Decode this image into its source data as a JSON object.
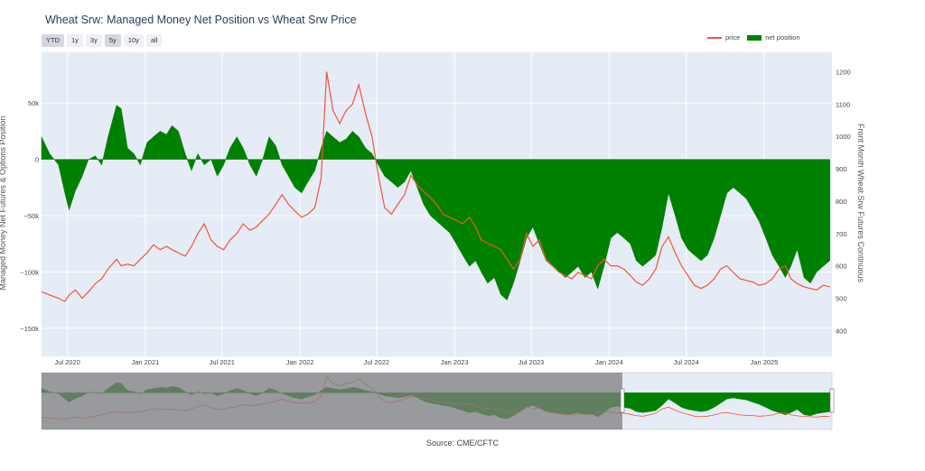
{
  "title": "Wheat Srw: Managed Money Net Position vs Wheat Srw Price",
  "range_buttons": [
    {
      "label": "YTD",
      "active": true
    },
    {
      "label": "1y",
      "active": false
    },
    {
      "label": "3y",
      "active": false
    },
    {
      "label": "5y",
      "active": true
    },
    {
      "label": "10y",
      "active": false
    },
    {
      "label": "all",
      "active": false
    }
  ],
  "legend": {
    "price": "price",
    "net": "net position"
  },
  "source": "Source: CME/CFTC",
  "colors": {
    "price": "#ef553b",
    "net": "#008000",
    "plot_bg": "#e5ecf6",
    "grid": "#ffffff",
    "slider_mask": "#7f7f7f"
  },
  "chart_data": {
    "type": "area",
    "xlabel": "",
    "y_left_label": "Managed Money Net Futures & Options Position",
    "y_right_label": "Front Month Wheat Srw Futures Continuous",
    "x_range": [
      "2020-05-01",
      "2025-06-10"
    ],
    "y_left_range": [
      -175000,
      95000
    ],
    "y_right_range": [
      320,
      1260
    ],
    "x_ticks": [
      {
        "date": "2020-07-01",
        "label": "Jul 2020"
      },
      {
        "date": "2021-01-01",
        "label": "Jan 2021"
      },
      {
        "date": "2021-07-01",
        "label": "Jul 2021"
      },
      {
        "date": "2022-01-01",
        "label": "Jan 2022"
      },
      {
        "date": "2022-07-01",
        "label": "Jul 2022"
      },
      {
        "date": "2023-01-01",
        "label": "Jan 2023"
      },
      {
        "date": "2023-07-01",
        "label": "Jul 2023"
      },
      {
        "date": "2024-01-01",
        "label": "Jan 2024"
      },
      {
        "date": "2024-07-01",
        "label": "Jul 2024"
      },
      {
        "date": "2025-01-01",
        "label": "Jan 2025"
      }
    ],
    "y_left_ticks": [
      {
        "value": 50000,
        "label": "50k"
      },
      {
        "value": 0,
        "label": "0"
      },
      {
        "value": -50000,
        "label": "−50k"
      },
      {
        "value": -100000,
        "label": "−100k"
      },
      {
        "value": -150000,
        "label": "−150k"
      }
    ],
    "y_right_ticks": [
      {
        "value": 1200,
        "label": "1200"
      },
      {
        "value": 1100,
        "label": "1100"
      },
      {
        "value": 1000,
        "label": "1000"
      },
      {
        "value": 900,
        "label": "900"
      },
      {
        "value": 800,
        "label": "800"
      },
      {
        "value": 700,
        "label": "700"
      },
      {
        "value": 600,
        "label": "600"
      },
      {
        "value": 500,
        "label": "500"
      },
      {
        "value": 400,
        "label": "400"
      }
    ],
    "series": [
      {
        "name": "net position",
        "kind": "area",
        "points": [
          [
            "2020-05-01",
            20000
          ],
          [
            "2020-05-20",
            5000
          ],
          [
            "2020-06-10",
            -5000
          ],
          [
            "2020-06-25",
            -30000
          ],
          [
            "2020-07-05",
            -45000
          ],
          [
            "2020-07-20",
            -28000
          ],
          [
            "2020-08-05",
            -15000
          ],
          [
            "2020-08-20",
            0
          ],
          [
            "2020-09-05",
            3000
          ],
          [
            "2020-09-20",
            -5000
          ],
          [
            "2020-10-05",
            20000
          ],
          [
            "2020-10-25",
            48000
          ],
          [
            "2020-11-05",
            45000
          ],
          [
            "2020-11-20",
            10000
          ],
          [
            "2020-12-05",
            5000
          ],
          [
            "2020-12-20",
            -5000
          ],
          [
            "2021-01-05",
            15000
          ],
          [
            "2021-01-20",
            20000
          ],
          [
            "2021-02-05",
            25000
          ],
          [
            "2021-02-20",
            22000
          ],
          [
            "2021-03-05",
            30000
          ],
          [
            "2021-03-20",
            25000
          ],
          [
            "2021-04-05",
            5000
          ],
          [
            "2021-04-20",
            -10000
          ],
          [
            "2021-05-05",
            5000
          ],
          [
            "2021-05-20",
            -5000
          ],
          [
            "2021-06-05",
            0
          ],
          [
            "2021-06-20",
            -15000
          ],
          [
            "2021-07-05",
            -5000
          ],
          [
            "2021-07-20",
            10000
          ],
          [
            "2021-08-05",
            20000
          ],
          [
            "2021-08-20",
            10000
          ],
          [
            "2021-09-05",
            -5000
          ],
          [
            "2021-09-20",
            -15000
          ],
          [
            "2021-10-05",
            0
          ],
          [
            "2021-10-20",
            20000
          ],
          [
            "2021-11-05",
            12000
          ],
          [
            "2021-11-20",
            -5000
          ],
          [
            "2021-12-05",
            -15000
          ],
          [
            "2021-12-20",
            -25000
          ],
          [
            "2022-01-05",
            -30000
          ],
          [
            "2022-01-20",
            -20000
          ],
          [
            "2022-02-05",
            -10000
          ],
          [
            "2022-02-20",
            10000
          ],
          [
            "2022-03-05",
            25000
          ],
          [
            "2022-03-20",
            20000
          ],
          [
            "2022-04-05",
            15000
          ],
          [
            "2022-04-20",
            18000
          ],
          [
            "2022-05-05",
            25000
          ],
          [
            "2022-05-20",
            20000
          ],
          [
            "2022-06-05",
            10000
          ],
          [
            "2022-06-20",
            5000
          ],
          [
            "2022-07-05",
            -5000
          ],
          [
            "2022-07-20",
            -15000
          ],
          [
            "2022-08-05",
            -20000
          ],
          [
            "2022-08-20",
            -25000
          ],
          [
            "2022-09-05",
            -20000
          ],
          [
            "2022-09-20",
            -10000
          ],
          [
            "2022-10-05",
            -25000
          ],
          [
            "2022-10-20",
            -40000
          ],
          [
            "2022-11-05",
            -50000
          ],
          [
            "2022-11-20",
            -55000
          ],
          [
            "2022-12-05",
            -60000
          ],
          [
            "2022-12-20",
            -65000
          ],
          [
            "2023-01-05",
            -75000
          ],
          [
            "2023-01-20",
            -85000
          ],
          [
            "2023-02-05",
            -95000
          ],
          [
            "2023-02-20",
            -90000
          ],
          [
            "2023-03-05",
            -100000
          ],
          [
            "2023-03-20",
            -110000
          ],
          [
            "2023-04-05",
            -105000
          ],
          [
            "2023-04-20",
            -120000
          ],
          [
            "2023-05-05",
            -125000
          ],
          [
            "2023-05-20",
            -110000
          ],
          [
            "2023-06-05",
            -90000
          ],
          [
            "2023-06-20",
            -70000
          ],
          [
            "2023-07-05",
            -60000
          ],
          [
            "2023-07-20",
            -75000
          ],
          [
            "2023-08-05",
            -90000
          ],
          [
            "2023-08-20",
            -95000
          ],
          [
            "2023-09-05",
            -100000
          ],
          [
            "2023-09-20",
            -105000
          ],
          [
            "2023-10-05",
            -100000
          ],
          [
            "2023-10-20",
            -95000
          ],
          [
            "2023-11-05",
            -105000
          ],
          [
            "2023-11-20",
            -100000
          ],
          [
            "2023-12-05",
            -115000
          ],
          [
            "2023-12-20",
            -95000
          ],
          [
            "2024-01-05",
            -70000
          ],
          [
            "2024-01-20",
            -65000
          ],
          [
            "2024-02-05",
            -70000
          ],
          [
            "2024-02-20",
            -75000
          ],
          [
            "2024-03-05",
            -90000
          ],
          [
            "2024-03-20",
            -95000
          ],
          [
            "2024-04-05",
            -90000
          ],
          [
            "2024-04-20",
            -85000
          ],
          [
            "2024-05-05",
            -60000
          ],
          [
            "2024-05-20",
            -30000
          ],
          [
            "2024-06-05",
            -50000
          ],
          [
            "2024-06-20",
            -70000
          ],
          [
            "2024-07-05",
            -80000
          ],
          [
            "2024-07-20",
            -85000
          ],
          [
            "2024-08-05",
            -90000
          ],
          [
            "2024-08-20",
            -85000
          ],
          [
            "2024-09-05",
            -70000
          ],
          [
            "2024-09-20",
            -50000
          ],
          [
            "2024-10-05",
            -30000
          ],
          [
            "2024-10-20",
            -25000
          ],
          [
            "2024-11-05",
            -30000
          ],
          [
            "2024-11-20",
            -35000
          ],
          [
            "2024-12-05",
            -45000
          ],
          [
            "2024-12-20",
            -55000
          ],
          [
            "2025-01-05",
            -70000
          ],
          [
            "2025-01-20",
            -85000
          ],
          [
            "2025-02-05",
            -95000
          ],
          [
            "2025-02-20",
            -105000
          ],
          [
            "2025-03-05",
            -95000
          ],
          [
            "2025-03-20",
            -80000
          ],
          [
            "2025-04-05",
            -105000
          ],
          [
            "2025-04-20",
            -110000
          ],
          [
            "2025-05-05",
            -100000
          ],
          [
            "2025-05-20",
            -95000
          ],
          [
            "2025-06-05",
            -90000
          ]
        ]
      },
      {
        "name": "price",
        "kind": "line",
        "points": [
          [
            "2020-05-01",
            520
          ],
          [
            "2020-05-20",
            510
          ],
          [
            "2020-06-10",
            500
          ],
          [
            "2020-06-25",
            490
          ],
          [
            "2020-07-05",
            510
          ],
          [
            "2020-07-20",
            525
          ],
          [
            "2020-08-05",
            500
          ],
          [
            "2020-08-20",
            520
          ],
          [
            "2020-09-05",
            545
          ],
          [
            "2020-09-20",
            560
          ],
          [
            "2020-10-05",
            590
          ],
          [
            "2020-10-25",
            620
          ],
          [
            "2020-11-05",
            600
          ],
          [
            "2020-11-20",
            605
          ],
          [
            "2020-12-05",
            600
          ],
          [
            "2020-12-20",
            620
          ],
          [
            "2021-01-05",
            640
          ],
          [
            "2021-01-20",
            665
          ],
          [
            "2021-02-05",
            650
          ],
          [
            "2021-02-20",
            660
          ],
          [
            "2021-03-05",
            650
          ],
          [
            "2021-03-20",
            640
          ],
          [
            "2021-04-05",
            630
          ],
          [
            "2021-04-20",
            660
          ],
          [
            "2021-05-05",
            700
          ],
          [
            "2021-05-20",
            730
          ],
          [
            "2021-06-05",
            680
          ],
          [
            "2021-06-20",
            660
          ],
          [
            "2021-07-05",
            650
          ],
          [
            "2021-07-20",
            680
          ],
          [
            "2021-08-05",
            700
          ],
          [
            "2021-08-20",
            730
          ],
          [
            "2021-09-05",
            710
          ],
          [
            "2021-09-20",
            720
          ],
          [
            "2021-10-05",
            740
          ],
          [
            "2021-10-20",
            760
          ],
          [
            "2021-11-05",
            790
          ],
          [
            "2021-11-20",
            820
          ],
          [
            "2021-12-05",
            790
          ],
          [
            "2021-12-20",
            770
          ],
          [
            "2022-01-05",
            750
          ],
          [
            "2022-01-20",
            760
          ],
          [
            "2022-02-05",
            780
          ],
          [
            "2022-02-20",
            870
          ],
          [
            "2022-03-05",
            1200
          ],
          [
            "2022-03-20",
            1080
          ],
          [
            "2022-04-05",
            1040
          ],
          [
            "2022-04-20",
            1080
          ],
          [
            "2022-05-05",
            1100
          ],
          [
            "2022-05-20",
            1160
          ],
          [
            "2022-06-05",
            1070
          ],
          [
            "2022-06-20",
            1000
          ],
          [
            "2022-07-05",
            880
          ],
          [
            "2022-07-20",
            780
          ],
          [
            "2022-08-05",
            760
          ],
          [
            "2022-08-20",
            790
          ],
          [
            "2022-09-05",
            820
          ],
          [
            "2022-09-20",
            880
          ],
          [
            "2022-10-05",
            850
          ],
          [
            "2022-10-20",
            830
          ],
          [
            "2022-11-05",
            810
          ],
          [
            "2022-11-20",
            790
          ],
          [
            "2022-12-05",
            760
          ],
          [
            "2022-12-20",
            750
          ],
          [
            "2023-01-05",
            740
          ],
          [
            "2023-01-20",
            730
          ],
          [
            "2023-02-05",
            750
          ],
          [
            "2023-02-20",
            720
          ],
          [
            "2023-03-05",
            680
          ],
          [
            "2023-03-20",
            670
          ],
          [
            "2023-04-05",
            660
          ],
          [
            "2023-04-20",
            650
          ],
          [
            "2023-05-05",
            620
          ],
          [
            "2023-05-20",
            590
          ],
          [
            "2023-06-05",
            620
          ],
          [
            "2023-06-20",
            700
          ],
          [
            "2023-07-05",
            660
          ],
          [
            "2023-07-20",
            680
          ],
          [
            "2023-08-05",
            620
          ],
          [
            "2023-08-20",
            600
          ],
          [
            "2023-09-05",
            580
          ],
          [
            "2023-09-20",
            570
          ],
          [
            "2023-10-05",
            560
          ],
          [
            "2023-10-20",
            580
          ],
          [
            "2023-11-05",
            570
          ],
          [
            "2023-11-20",
            560
          ],
          [
            "2023-12-05",
            600
          ],
          [
            "2023-12-20",
            620
          ],
          [
            "2024-01-05",
            600
          ],
          [
            "2024-01-20",
            600
          ],
          [
            "2024-02-05",
            590
          ],
          [
            "2024-02-20",
            570
          ],
          [
            "2024-03-05",
            550
          ],
          [
            "2024-03-20",
            540
          ],
          [
            "2024-04-05",
            560
          ],
          [
            "2024-04-20",
            590
          ],
          [
            "2024-05-05",
            660
          ],
          [
            "2024-05-20",
            690
          ],
          [
            "2024-06-05",
            640
          ],
          [
            "2024-06-20",
            600
          ],
          [
            "2024-07-05",
            570
          ],
          [
            "2024-07-20",
            540
          ],
          [
            "2024-08-05",
            530
          ],
          [
            "2024-08-20",
            540
          ],
          [
            "2024-09-05",
            560
          ],
          [
            "2024-09-20",
            590
          ],
          [
            "2024-10-05",
            600
          ],
          [
            "2024-10-20",
            580
          ],
          [
            "2024-11-05",
            560
          ],
          [
            "2024-11-20",
            555
          ],
          [
            "2024-12-05",
            550
          ],
          [
            "2024-12-20",
            540
          ],
          [
            "2025-01-05",
            545
          ],
          [
            "2025-01-20",
            560
          ],
          [
            "2025-02-05",
            590
          ],
          [
            "2025-02-20",
            600
          ],
          [
            "2025-03-05",
            560
          ],
          [
            "2025-03-20",
            545
          ],
          [
            "2025-04-05",
            535
          ],
          [
            "2025-04-20",
            530
          ],
          [
            "2025-05-05",
            525
          ],
          [
            "2025-05-20",
            540
          ],
          [
            "2025-06-05",
            535
          ]
        ]
      }
    ]
  }
}
